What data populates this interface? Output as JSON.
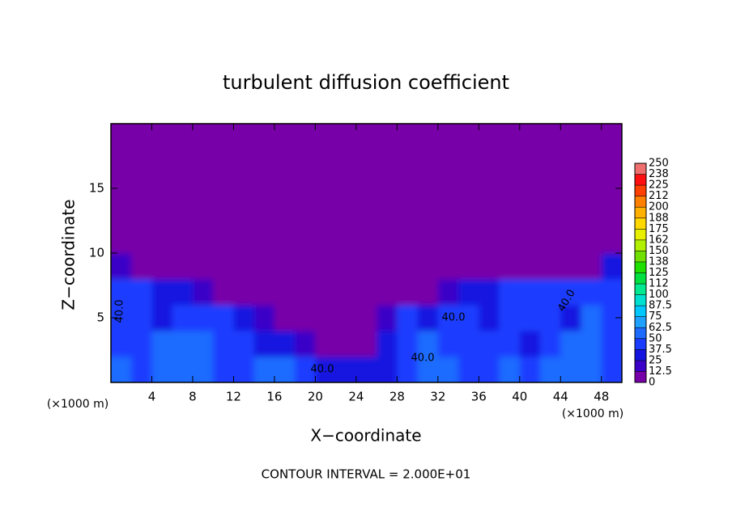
{
  "chart_data": {
    "type": "heatmap",
    "title": "turbulent diffusion coefficient",
    "xlabel": "X−coordinate",
    "ylabel": "Z−coordinate",
    "x_unit": "(×1000 m)",
    "footer": "CONTOUR INTERVAL = 2.000E+01",
    "annotations": [
      "40.0",
      "40.0",
      "40.0",
      "40.0",
      "40.0"
    ],
    "xlim": [
      0,
      50
    ],
    "ylim": [
      0,
      20
    ],
    "xticks": [
      4,
      8,
      12,
      16,
      20,
      24,
      28,
      32,
      36,
      40,
      44,
      48
    ],
    "yticks": [
      5,
      10,
      15
    ],
    "x": [
      0,
      2,
      4,
      6,
      8,
      10,
      12,
      14,
      16,
      18,
      20,
      22,
      24,
      26,
      28,
      30,
      32,
      34,
      36,
      38,
      40,
      42,
      44,
      46,
      48
    ],
    "y": [
      0,
      2,
      4,
      6,
      8,
      10,
      12,
      14,
      16,
      18
    ],
    "z": [
      [
        50,
        45,
        55,
        60,
        50,
        40,
        45,
        55,
        50,
        40,
        35,
        30,
        25,
        35,
        45,
        50,
        55,
        45,
        40,
        50,
        45,
        55,
        50,
        60,
        45
      ],
      [
        45,
        40,
        50,
        55,
        50,
        45,
        40,
        35,
        25,
        15,
        10,
        8,
        10,
        30,
        45,
        50,
        45,
        40,
        45,
        40,
        35,
        45,
        50,
        55,
        45
      ],
      [
        40,
        45,
        35,
        40,
        45,
        40,
        30,
        20,
        10,
        5,
        3,
        2,
        5,
        20,
        40,
        35,
        45,
        40,
        35,
        45,
        40,
        45,
        35,
        50,
        45
      ],
      [
        45,
        40,
        35,
        30,
        20,
        10,
        5,
        2,
        0,
        0,
        0,
        0,
        0,
        0,
        5,
        10,
        20,
        30,
        35,
        40,
        45,
        40,
        40,
        45,
        40
      ],
      [
        20,
        5,
        0,
        0,
        0,
        0,
        0,
        0,
        0,
        0,
        0,
        0,
        0,
        0,
        0,
        0,
        0,
        0,
        0,
        0,
        0,
        0,
        5,
        10,
        25
      ],
      [
        0,
        0,
        0,
        0,
        0,
        0,
        0,
        0,
        0,
        0,
        0,
        0,
        0,
        0,
        0,
        0,
        0,
        0,
        0,
        0,
        0,
        0,
        0,
        0,
        0
      ],
      [
        0,
        0,
        0,
        0,
        0,
        0,
        0,
        0,
        0,
        0,
        0,
        0,
        0,
        0,
        0,
        0,
        0,
        0,
        0,
        0,
        0,
        0,
        0,
        0,
        0
      ],
      [
        0,
        0,
        0,
        0,
        0,
        0,
        0,
        0,
        0,
        0,
        0,
        0,
        0,
        0,
        0,
        0,
        0,
        0,
        0,
        0,
        0,
        0,
        0,
        0,
        0
      ],
      [
        0,
        0,
        0,
        0,
        0,
        0,
        0,
        0,
        0,
        0,
        0,
        0,
        0,
        0,
        0,
        0,
        0,
        0,
        0,
        0,
        0,
        0,
        0,
        0,
        0
      ],
      [
        0,
        0,
        0,
        0,
        0,
        0,
        0,
        0,
        0,
        0,
        0,
        0,
        0,
        0,
        0,
        0,
        0,
        0,
        0,
        0,
        0,
        0,
        0,
        0,
        0
      ]
    ],
    "levels": [
      0,
      12.5,
      25,
      37.5,
      50,
      62.5,
      75,
      87.5,
      100,
      112,
      125,
      138,
      150,
      162,
      175,
      188,
      200,
      212,
      225,
      238,
      250
    ],
    "colors": [
      "#7800a8",
      "#3a00c8",
      "#1414e0",
      "#1a3cff",
      "#1e6cff",
      "#1ea0ff",
      "#00c8ff",
      "#00e0d0",
      "#00e890",
      "#00e040",
      "#20e000",
      "#70e000",
      "#b0f000",
      "#e8f000",
      "#ffd800",
      "#ffb000",
      "#ff8000",
      "#ff4000",
      "#ff1010",
      "#f07070"
    ]
  }
}
